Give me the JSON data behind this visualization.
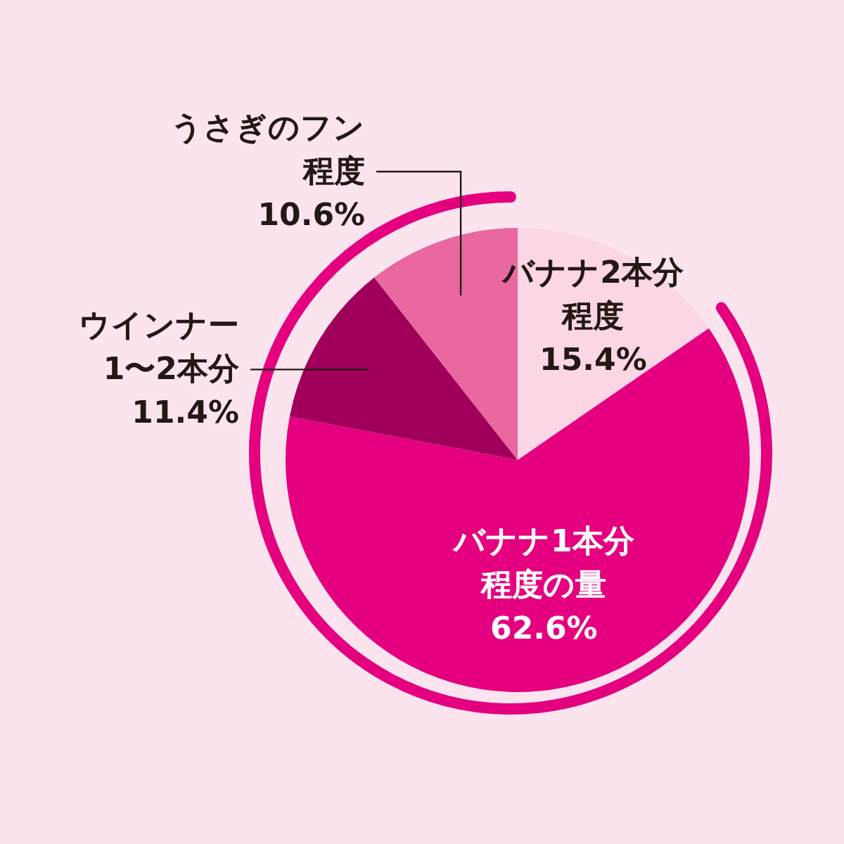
{
  "chart_data": {
    "type": "pie",
    "categories": [
      "バナナ2本分程度",
      "バナナ1本分程度の量",
      "ウインナー1〜2本分",
      "うさぎのフン程度"
    ],
    "values": [
      15.4,
      62.6,
      11.4,
      10.6
    ],
    "colors": [
      "#fbd6e5",
      "#e4007f",
      "#a0005a",
      "#e8689f"
    ],
    "value_labels": [
      "15.4%",
      "62.6%",
      "11.4%",
      "10.6%"
    ]
  }
}
